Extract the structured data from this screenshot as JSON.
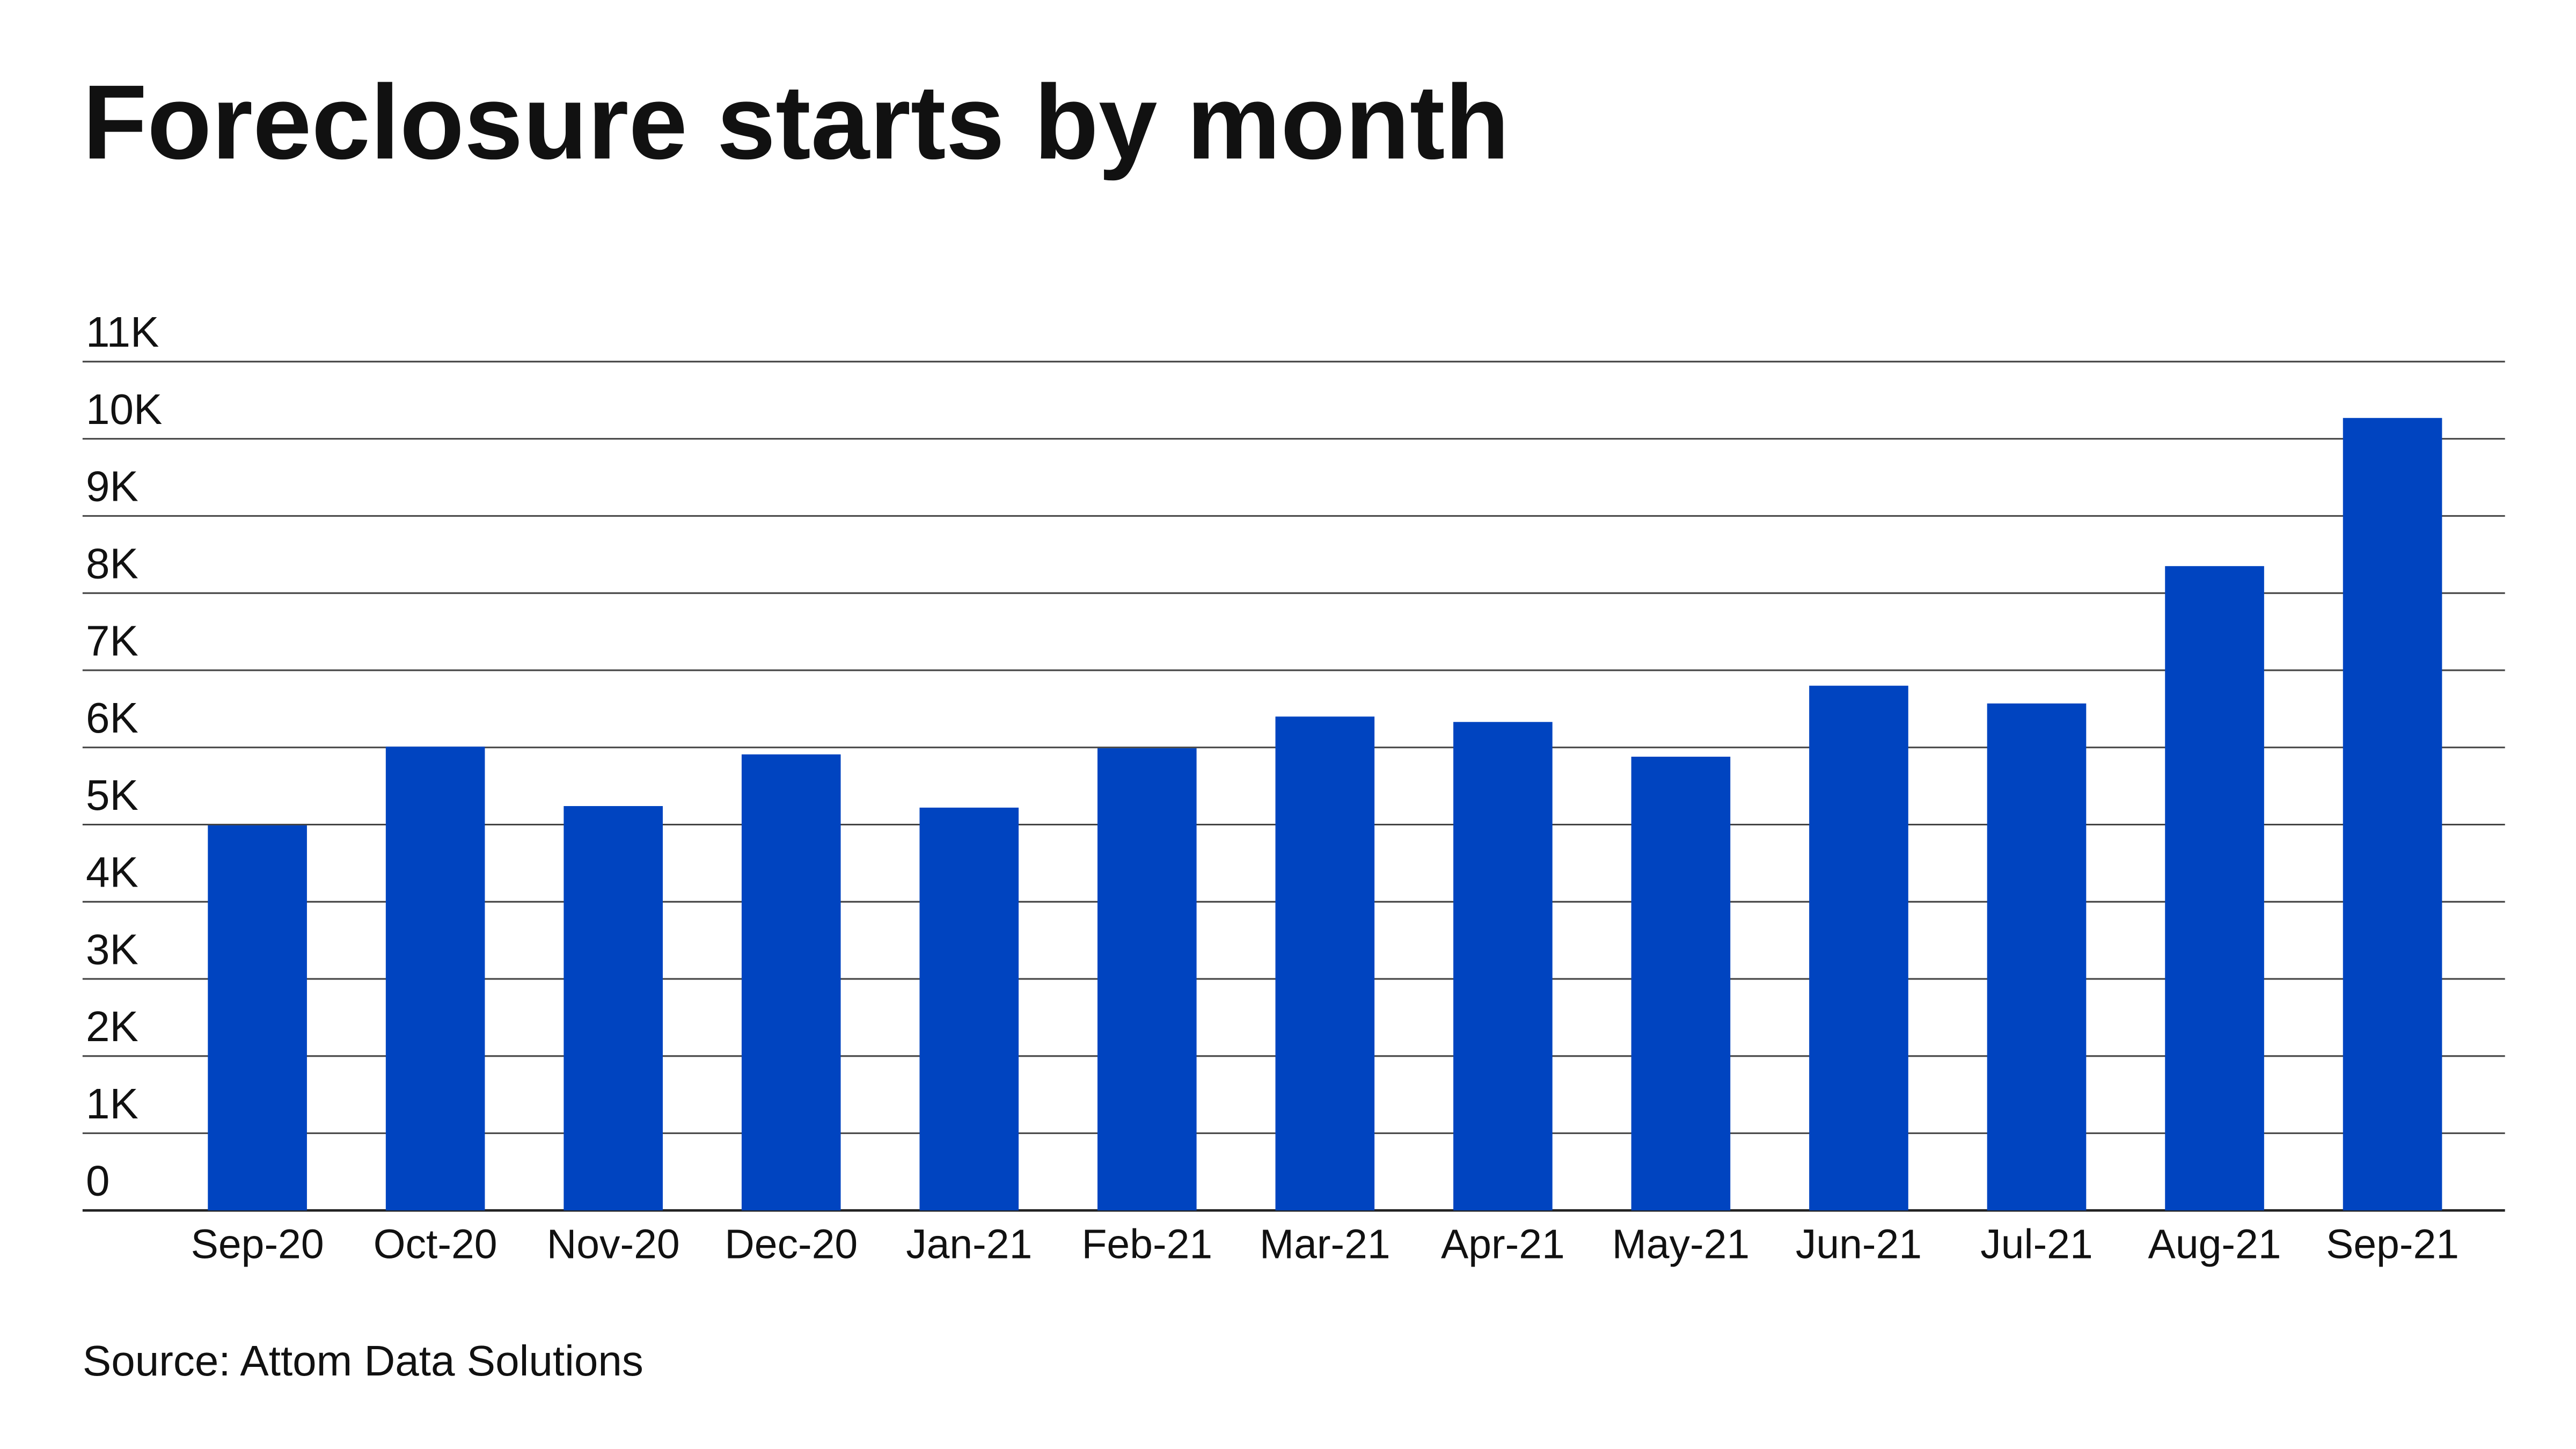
{
  "chart_data": {
    "type": "bar",
    "title": "Foreclosure starts by month",
    "source": "Source: Attom Data Solutions",
    "categories": [
      "Sep-20",
      "Oct-20",
      "Nov-20",
      "Dec-20",
      "Jan-21",
      "Feb-21",
      "Mar-21",
      "Apr-21",
      "May-21",
      "Jun-21",
      "Jul-21",
      "Aug-21",
      "Sep-21"
    ],
    "values": [
      4990,
      6010,
      5240,
      5910,
      5220,
      5990,
      6400,
      6330,
      5880,
      6800,
      6570,
      8350,
      10270
    ],
    "color": "#0044c0",
    "ylim": [
      0,
      11000
    ],
    "yticks": [
      0,
      {
        "value": 1000,
        "label": "1K"
      },
      {
        "value": 2000,
        "label": "2K"
      },
      {
        "value": 3000,
        "label": "3K"
      },
      {
        "value": 4000,
        "label": "4K"
      },
      {
        "value": 5000,
        "label": "5K"
      },
      {
        "value": 6000,
        "label": "6K"
      },
      {
        "value": 7000,
        "label": "7K"
      },
      {
        "value": 8000,
        "label": "8K"
      },
      {
        "value": 9000,
        "label": "9K"
      },
      {
        "value": 10000,
        "label": "10K"
      },
      {
        "value": 11000,
        "label": "11K"
      }
    ],
    "grid": true
  }
}
